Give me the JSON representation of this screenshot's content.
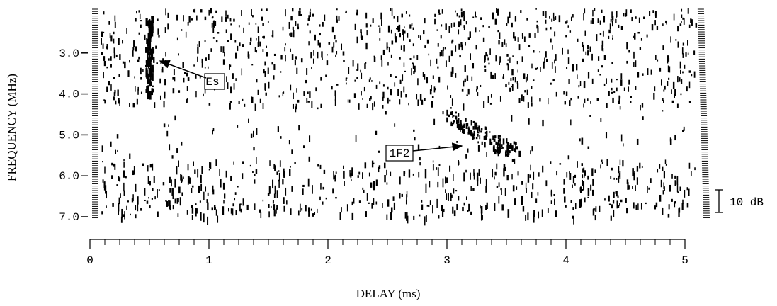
{
  "chart_data": {
    "type": "ionogram",
    "x_label": "DELAY (ms)",
    "y_label": "FREQUENCY (MHz)",
    "xlim": [
      0,
      5
    ],
    "xticks": [
      0,
      1,
      2,
      3,
      4,
      5
    ],
    "ylim": [
      2,
      7
    ],
    "yticks": [
      {
        "value": 3,
        "label": "3.0"
      },
      {
        "value": 4,
        "label": "4.0"
      },
      {
        "value": 5,
        "label": "5.0"
      },
      {
        "value": 6,
        "label": "6.0"
      },
      {
        "value": 7,
        "label": "7.0"
      }
    ],
    "y_inverted": true,
    "x_minor_per_major": 8,
    "annotations": [
      "Es",
      "1F2"
    ],
    "scale_bar_label": "10 dB",
    "color": "#000000"
  }
}
